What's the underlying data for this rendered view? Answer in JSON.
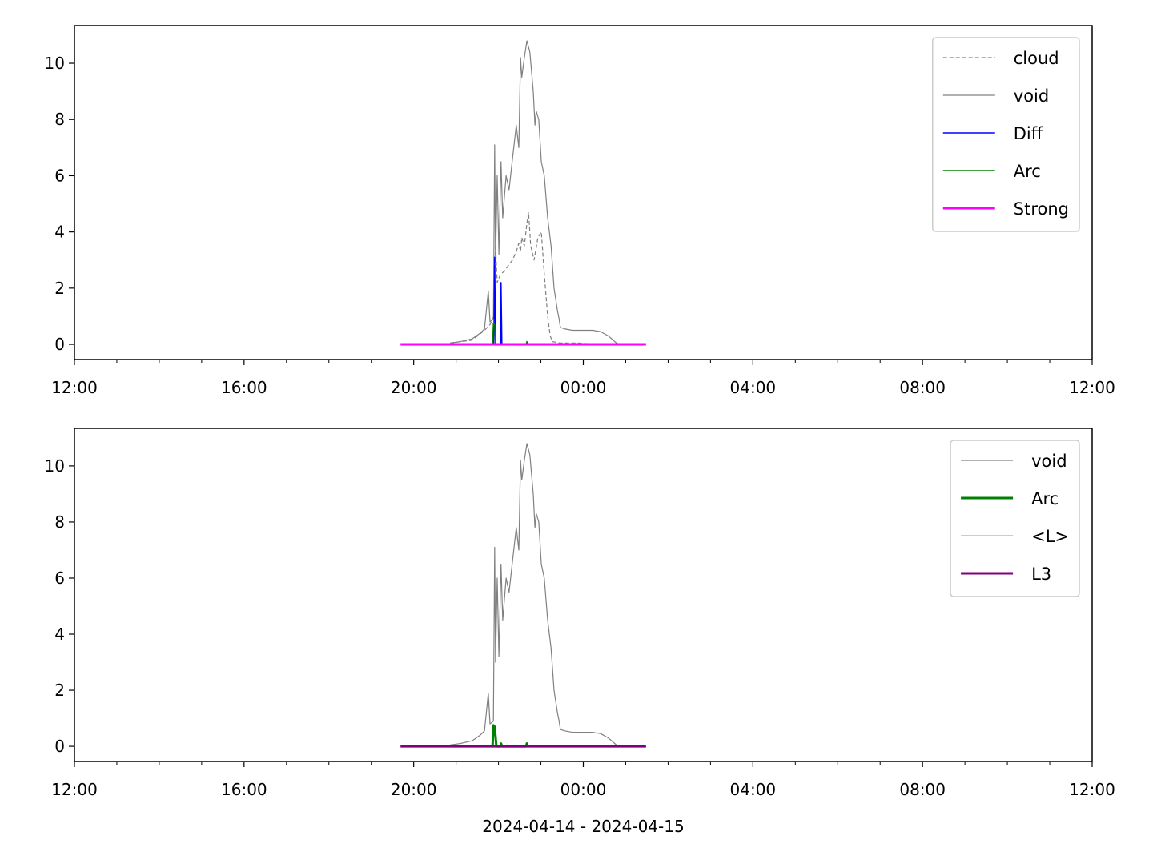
{
  "chart_data": [
    {
      "type": "line",
      "xlim": [
        0,
        24
      ],
      "xticks": [
        {
          "value": 0,
          "label": "12:00"
        },
        {
          "value": 4,
          "label": "16:00"
        },
        {
          "value": 8,
          "label": "20:00"
        },
        {
          "value": 12,
          "label": "00:00"
        },
        {
          "value": 16,
          "label": "04:00"
        },
        {
          "value": 20,
          "label": "08:00"
        },
        {
          "value": 24,
          "label": "12:00"
        }
      ],
      "xminorticks": [
        1,
        2,
        3,
        5,
        6,
        7,
        9,
        10,
        11,
        13,
        14,
        15,
        17,
        18,
        19,
        21,
        22,
        23
      ],
      "ylim": [
        -0.54,
        11.34
      ],
      "yticks": [
        0,
        2,
        4,
        6,
        8,
        10
      ],
      "legend": "upper right",
      "series": [
        {
          "name": "cloud",
          "color": "#808080",
          "linewidth": 1.2,
          "dashed": true,
          "x": [
            8.86,
            9.38,
            9.67,
            9.8,
            9.89,
            9.93,
            9.97,
            10.05,
            10.14,
            10.23,
            10.33,
            10.42,
            10.48,
            10.52,
            10.55,
            10.61,
            10.67,
            10.71,
            10.76,
            10.84,
            10.93,
            11.01,
            11.08,
            11.16,
            11.22,
            11.27,
            11.46,
            11.84,
            12.22
          ],
          "values": [
            0.05,
            0.15,
            0.5,
            0.7,
            1.0,
            3.5,
            2.2,
            2.5,
            2.6,
            2.8,
            3.0,
            3.3,
            3.6,
            3.3,
            3.8,
            3.5,
            4.3,
            4.7,
            3.5,
            3.0,
            3.8,
            4.0,
            2.5,
            1.0,
            0.3,
            0.1,
            0.05,
            0.05,
            0.02
          ]
        },
        {
          "name": "void",
          "color": "#808080",
          "linewidth": 1.2,
          "x": [
            8.86,
            9.1,
            9.38,
            9.57,
            9.67,
            9.76,
            9.8,
            9.88,
            9.91,
            9.93,
            9.97,
            10.01,
            10.06,
            10.1,
            10.18,
            10.25,
            10.33,
            10.42,
            10.48,
            10.52,
            10.55,
            10.61,
            10.67,
            10.74,
            10.82,
            10.86,
            10.89,
            10.95,
            11.01,
            11.08,
            11.16,
            11.24,
            11.31,
            11.39,
            11.43,
            11.46,
            11.56,
            11.74,
            12.22,
            12.41,
            12.59,
            12.78,
            12.88
          ],
          "values": [
            0.05,
            0.1,
            0.2,
            0.4,
            0.55,
            1.9,
            0.8,
            0.9,
            7.1,
            3.0,
            6.0,
            3.2,
            6.5,
            4.5,
            6.0,
            5.5,
            6.6,
            7.8,
            7.0,
            10.2,
            9.5,
            10.2,
            10.8,
            10.4,
            9.0,
            7.8,
            8.3,
            8.0,
            6.5,
            6.0,
            4.5,
            3.5,
            2.0,
            1.2,
            0.9,
            0.6,
            0.55,
            0.5,
            0.5,
            0.45,
            0.3,
            0.05,
            0.0
          ]
        },
        {
          "name": "Diff",
          "color": "#0000ff",
          "linewidth": 1.5,
          "x": [
            9.89,
            9.91,
            9.93,
            10.05,
            10.06,
            10.08
          ],
          "values": [
            0,
            3.1,
            0,
            0,
            2.2,
            0
          ]
        },
        {
          "name": "Arc",
          "color": "#008000",
          "linewidth": 1.5,
          "x": [
            9.86,
            9.88,
            9.91,
            9.93,
            10.65,
            10.67,
            10.69
          ],
          "values": [
            0,
            0.75,
            0.7,
            0,
            0,
            0.1,
            0
          ]
        },
        {
          "name": "Strong",
          "color": "#ff00ff",
          "linewidth": 3,
          "x": [
            7.69,
            13.48
          ],
          "values": [
            0,
            0
          ]
        }
      ]
    },
    {
      "type": "line",
      "xlabel": "2024-04-14 - 2024-04-15",
      "xlim": [
        0,
        24
      ],
      "xticks": [
        {
          "value": 0,
          "label": "12:00"
        },
        {
          "value": 4,
          "label": "16:00"
        },
        {
          "value": 8,
          "label": "20:00"
        },
        {
          "value": 12,
          "label": "00:00"
        },
        {
          "value": 16,
          "label": "04:00"
        },
        {
          "value": 20,
          "label": "08:00"
        },
        {
          "value": 24,
          "label": "12:00"
        }
      ],
      "xminorticks": [
        1,
        2,
        3,
        5,
        6,
        7,
        9,
        10,
        11,
        13,
        14,
        15,
        17,
        18,
        19,
        21,
        22,
        23
      ],
      "ylim": [
        -0.54,
        11.34
      ],
      "yticks": [
        0,
        2,
        4,
        6,
        8,
        10
      ],
      "legend": "upper right",
      "series": [
        {
          "name": "void",
          "color": "#808080",
          "linewidth": 1.2,
          "x": [
            8.86,
            9.1,
            9.38,
            9.57,
            9.67,
            9.76,
            9.8,
            9.88,
            9.91,
            9.93,
            9.97,
            10.01,
            10.06,
            10.1,
            10.18,
            10.25,
            10.33,
            10.42,
            10.48,
            10.52,
            10.55,
            10.61,
            10.67,
            10.74,
            10.82,
            10.86,
            10.89,
            10.95,
            11.01,
            11.08,
            11.16,
            11.24,
            11.31,
            11.39,
            11.43,
            11.46,
            11.56,
            11.74,
            12.22,
            12.41,
            12.59,
            12.78,
            12.88
          ],
          "values": [
            0.05,
            0.1,
            0.2,
            0.4,
            0.55,
            1.9,
            0.8,
            0.9,
            7.1,
            3.0,
            6.0,
            3.2,
            6.5,
            4.5,
            6.0,
            5.5,
            6.6,
            7.8,
            7.0,
            10.2,
            9.5,
            10.2,
            10.8,
            10.4,
            9.0,
            7.8,
            8.3,
            8.0,
            6.5,
            6.0,
            4.5,
            3.5,
            2.0,
            1.2,
            0.9,
            0.6,
            0.55,
            0.5,
            0.5,
            0.45,
            0.3,
            0.05,
            0.0
          ]
        },
        {
          "name": "Arc",
          "color": "#008000",
          "linewidth": 3,
          "x": [
            9.86,
            9.88,
            9.91,
            9.95,
            10.05,
            10.06,
            10.08,
            10.65,
            10.67,
            10.69
          ],
          "values": [
            0,
            0.75,
            0.7,
            0,
            0,
            0.1,
            0,
            0,
            0.1,
            0
          ]
        },
        {
          "name": "<L>",
          "color": "#ffa500",
          "linewidth": 1.2,
          "x": [
            7.69,
            13.48
          ],
          "values": [
            0,
            0
          ]
        },
        {
          "name": "L3",
          "color": "#800080",
          "linewidth": 3,
          "x": [
            7.69,
            13.48
          ],
          "values": [
            0,
            0
          ]
        }
      ]
    }
  ]
}
